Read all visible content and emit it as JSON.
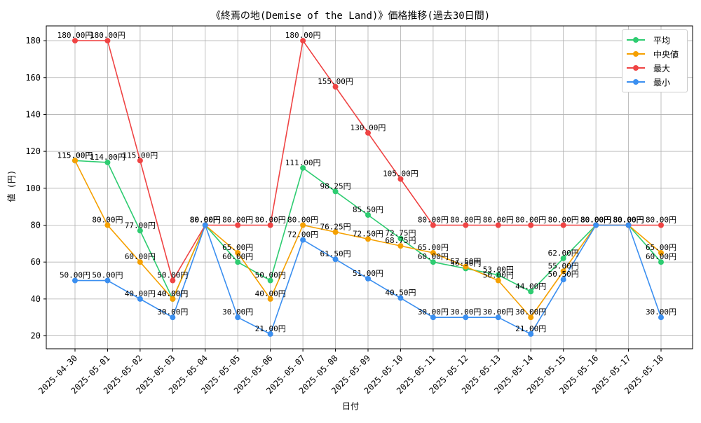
{
  "chart_data": {
    "type": "line",
    "title": "《終焉の地(Demise of the Land)》価格推移(過去30日間)",
    "xlabel": "日付",
    "ylabel": "値 (円)",
    "categories": [
      "2025-04-30",
      "2025-05-01",
      "2025-05-02",
      "2025-05-03",
      "2025-05-04",
      "2025-05-05",
      "2025-05-06",
      "2025-05-07",
      "2025-05-08",
      "2025-05-09",
      "2025-05-10",
      "2025-05-11",
      "2025-05-12",
      "2025-05-13",
      "2025-05-14",
      "2025-05-15",
      "2025-05-16",
      "2025-05-17",
      "2025-05-18"
    ],
    "ylim": [
      13,
      188
    ],
    "yticks": [
      20,
      40,
      60,
      80,
      100,
      120,
      140,
      160,
      180
    ],
    "grid": true,
    "legend_position": "top-right",
    "series": [
      {
        "name": "平均",
        "color": "#2ecc71",
        "values": [
          115.0,
          114.0,
          77.0,
          40.0,
          80.0,
          60.0,
          50.0,
          111.0,
          98.25,
          85.5,
          72.75,
          60.0,
          56.5,
          53.0,
          44.0,
          62.0,
          80.0,
          80.0,
          60.0
        ],
        "labels": [
          "115.00円",
          "114.00円",
          "77.00円",
          "40.00円",
          "80.00円",
          "60.00円",
          "50.00円",
          "111.00円",
          "98.25円",
          "85.50円",
          "72.75円",
          "60.00円",
          "56.50円",
          "53.00円",
          "44.00円",
          "62.00円",
          "80.00円",
          "80.00円",
          "60.00円"
        ]
      },
      {
        "name": "中央値",
        "color": "#f5a000",
        "values": [
          115.0,
          80.0,
          60.0,
          40.0,
          80.0,
          65.0,
          40.0,
          80.0,
          76.25,
          72.5,
          68.75,
          65.0,
          57.5,
          50.0,
          30.0,
          55.0,
          80.0,
          80.0,
          65.0
        ],
        "labels": [
          "115.00円",
          "80.00円",
          "60.00円",
          "40.00円",
          "80.00円",
          "65.00円",
          "40.00円",
          "80.00円",
          "76.25円",
          "72.50円",
          "68.75円",
          "65.00円",
          "57.50円",
          "50.00円",
          "30.00円",
          "55.00円",
          "80.00円",
          "80.00円",
          "65.00円"
        ]
      },
      {
        "name": "最大",
        "color": "#ef4444",
        "values": [
          180.0,
          180.0,
          115.0,
          50.0,
          80.0,
          80.0,
          80.0,
          180.0,
          155.0,
          130.0,
          105.0,
          80.0,
          80.0,
          80.0,
          80.0,
          80.0,
          80.0,
          80.0,
          80.0
        ],
        "labels": [
          "180.00円",
          "180.00円",
          "115.00円",
          "50.00円",
          "80.00円",
          "80.00円",
          "80.00円",
          "180.00円",
          "155.00円",
          "130.00円",
          "105.00円",
          "80.00円",
          "80.00円",
          "80.00円",
          "80.00円",
          "80.00円",
          "80.00円",
          "80.00円",
          "80.00円"
        ]
      },
      {
        "name": "最小",
        "color": "#3b8ff0",
        "values": [
          50.0,
          50.0,
          40.0,
          30.0,
          80.0,
          30.0,
          21.0,
          72.0,
          61.5,
          51.0,
          40.5,
          30.0,
          30.0,
          30.0,
          21.0,
          50.5,
          80.0,
          80.0,
          30.0
        ],
        "labels": [
          "50.00円",
          "50.00円",
          "40.00円",
          "30.00円",
          "80.00円",
          "30.00円",
          "21.00円",
          "72.00円",
          "61.50円",
          "51.00円",
          "40.50円",
          "30.00円",
          "30.00円",
          "30.00円",
          "21.00円",
          "50.50円",
          "80.00円",
          "80.00円",
          "30.00円"
        ]
      }
    ]
  }
}
